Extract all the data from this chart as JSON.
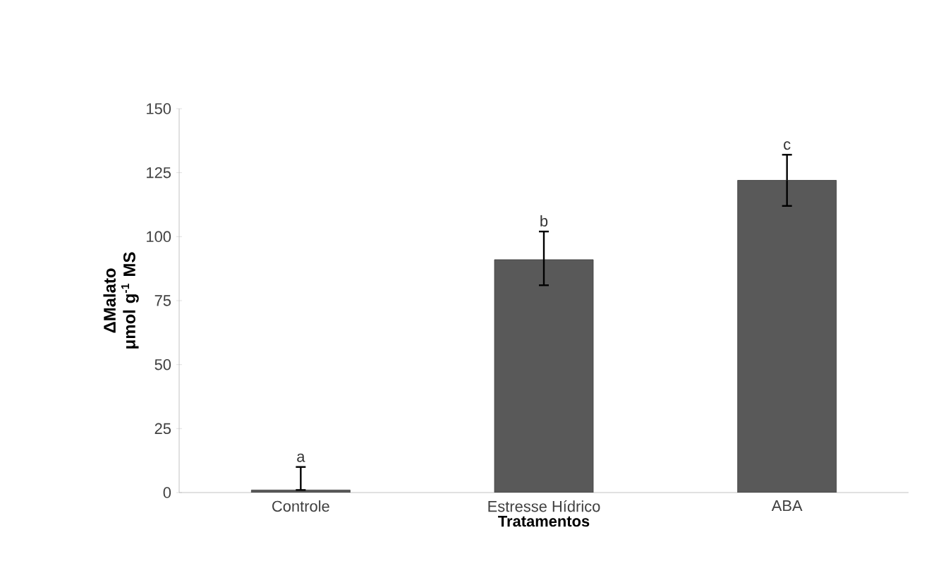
{
  "chart_data": {
    "type": "bar",
    "xlabel": "Tratamentos",
    "ylabel": "ΔMalato μmol g$^{-1}$ MS",
    "categories": [
      "Controle",
      "Estresse Hídrico",
      "ABA"
    ],
    "values": [
      1,
      91,
      122
    ],
    "errors": [
      [
        1,
        10
      ],
      [
        81,
        102
      ],
      [
        112,
        132
      ]
    ],
    "color": "#595959",
    "ylim": [
      0,
      150
    ],
    "yticks": [
      0,
      25,
      50,
      75,
      100,
      125,
      150
    ],
    "grid": false,
    "annotations": [
      {
        "text": "a",
        "x": "Controle",
        "y": 10
      },
      {
        "text": "b",
        "x": "Estresse Hídrico",
        "y": 102
      },
      {
        "text": "c",
        "x": "ABA",
        "y": 132
      }
    ]
  }
}
